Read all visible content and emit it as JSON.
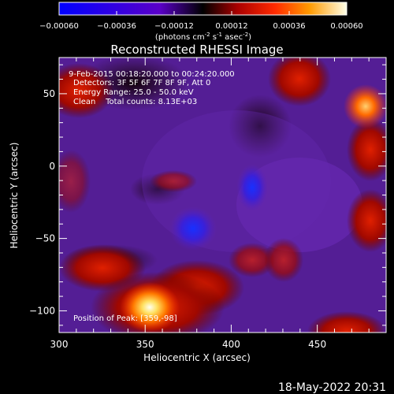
{
  "colorbar": {
    "ticks": [
      "-0.00060",
      "-0.00036",
      "-0.00012",
      "0.00012",
      "0.00036",
      "0.00060"
    ],
    "unit_label_main": "(photons cm",
    "unit_sup1": "-2",
    "unit_mid1": " s",
    "unit_sup2": "-1",
    "unit_mid2": " asec",
    "unit_sup3": "-2",
    "unit_end": ")"
  },
  "chart_data": {
    "type": "heatmap",
    "title": "Reconstructed RHESSI Image",
    "xlabel": "Heliocentric X (arcsec)",
    "ylabel": "Heliocentric Y (arcsec)",
    "xlim": [
      300,
      490
    ],
    "ylim": [
      -115,
      75
    ],
    "x_ticks": [
      "300",
      "350",
      "400",
      "450"
    ],
    "y_ticks": [
      "50",
      "0",
      "-50",
      "-100"
    ],
    "x_tick_values": [
      300,
      350,
      400,
      450
    ],
    "y_tick_values": [
      50,
      0,
      -50,
      -100
    ],
    "zlim": [
      -0.0006,
      0.0006
    ],
    "annotations": [
      "9-Feb-2015 00:18:20.000 to 00:24:20.000",
      "Detectors: 3F 5F 6F 7F 8F 9F, Att 0",
      "Energy Range: 25.0 - 50.0 keV",
      "Clean    Total counts: 8.13E+03"
    ],
    "peak_label": "Position of Peak: [359,-98]",
    "peak": [
      359,
      -98
    ]
  },
  "footer": {
    "timestamp": "18-May-2022 20:31"
  }
}
